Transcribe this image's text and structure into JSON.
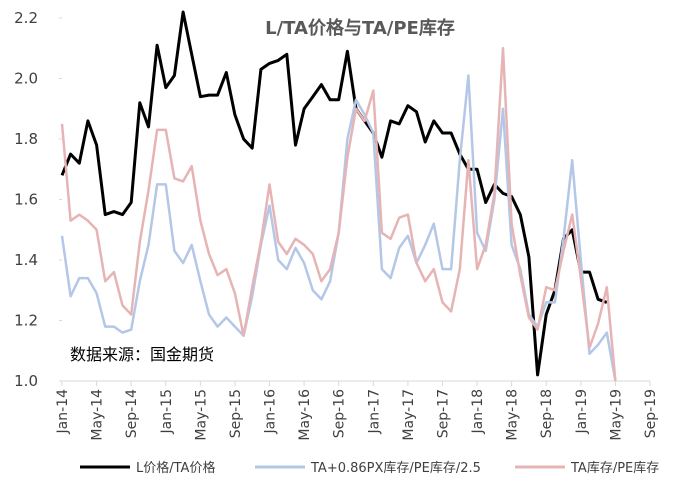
{
  "chart_data": {
    "type": "line",
    "title": "L/TA价格与TA/PE库存",
    "annotation": "数据来源：国金期货",
    "categories": [
      "Jan-14",
      null,
      null,
      null,
      "May-14",
      null,
      null,
      null,
      "Sep-14",
      null,
      null,
      null,
      "Jan-15",
      null,
      null,
      null,
      "May-15",
      null,
      null,
      null,
      "Sep-15",
      null,
      null,
      null,
      "Jan-16",
      null,
      null,
      null,
      "May-16",
      null,
      null,
      null,
      "Sep-16",
      null,
      null,
      null,
      "Jan-17",
      null,
      null,
      null,
      "May-17",
      null,
      null,
      null,
      "Sep-17",
      null,
      null,
      null,
      "Jan-18",
      null,
      null,
      null,
      "May-18",
      null,
      null,
      null,
      "Sep-18",
      null,
      null,
      null,
      "Jan-19",
      null,
      null,
      null,
      "May-19",
      null,
      null,
      null,
      "Sep-19"
    ],
    "series": [
      {
        "name": "L价格/TA价格",
        "color": "#000000",
        "values": [
          1.68,
          1.75,
          1.72,
          1.86,
          1.78,
          1.55,
          1.56,
          1.55,
          1.59,
          1.92,
          1.84,
          2.11,
          1.97,
          2.01,
          2.22,
          2.08,
          1.94,
          1.945,
          1.945,
          2.02,
          1.88,
          1.8,
          1.77,
          2.03,
          2.05,
          2.06,
          2.08,
          1.78,
          1.9,
          1.94,
          1.98,
          1.93,
          1.93,
          2.09,
          1.9,
          1.86,
          1.82,
          1.74,
          1.86,
          1.85,
          1.91,
          1.89,
          1.79,
          1.86,
          1.82,
          1.82,
          1.75,
          1.7,
          1.7,
          1.59,
          1.65,
          1.62,
          1.61,
          1.55,
          1.41,
          1.02,
          1.22,
          1.3,
          1.47,
          1.5,
          1.36,
          1.36,
          1.27,
          1.26,
          null,
          null,
          null,
          null,
          null
        ]
      },
      {
        "name": "TA+0.86PX库存/PE库存/2.5",
        "color": "#b4c7e7",
        "values": [
          1.48,
          1.28,
          1.34,
          1.34,
          1.29,
          1.18,
          1.18,
          1.16,
          1.17,
          1.33,
          1.45,
          1.65,
          1.65,
          1.43,
          1.39,
          1.45,
          1.33,
          1.22,
          1.18,
          1.21,
          1.18,
          1.15,
          1.28,
          1.45,
          1.58,
          1.4,
          1.37,
          1.44,
          1.39,
          1.3,
          1.27,
          1.33,
          1.49,
          1.8,
          1.93,
          1.88,
          1.82,
          1.37,
          1.34,
          1.44,
          1.48,
          1.39,
          1.45,
          1.52,
          1.37,
          1.37,
          1.73,
          2.01,
          1.49,
          1.43,
          1.6,
          1.9,
          1.45,
          1.37,
          1.22,
          1.18,
          1.26,
          1.26,
          1.47,
          1.73,
          1.4,
          1.09,
          1.12,
          1.16,
          1.0,
          null,
          null,
          null,
          null
        ]
      },
      {
        "name": "TA库存/PE库存",
        "color": "#e6b4b4",
        "values": [
          1.85,
          1.53,
          1.55,
          1.53,
          1.5,
          1.33,
          1.36,
          1.25,
          1.22,
          1.46,
          1.63,
          1.83,
          1.83,
          1.67,
          1.66,
          1.71,
          1.53,
          1.42,
          1.35,
          1.37,
          1.29,
          1.15,
          1.31,
          1.46,
          1.65,
          1.46,
          1.42,
          1.47,
          1.45,
          1.42,
          1.33,
          1.37,
          1.49,
          1.74,
          1.9,
          1.86,
          1.96,
          1.49,
          1.47,
          1.54,
          1.55,
          1.39,
          1.33,
          1.37,
          1.26,
          1.23,
          1.37,
          1.73,
          1.37,
          1.45,
          1.62,
          2.1,
          1.52,
          1.35,
          1.21,
          1.17,
          1.31,
          1.3,
          1.43,
          1.55,
          1.34,
          1.11,
          1.19,
          1.31,
          1.0,
          null,
          null,
          null,
          null
        ]
      }
    ],
    "ylim": [
      1.0,
      2.2
    ],
    "yticks": [
      {
        "value": 1,
        "label": "1.0"
      },
      1.2,
      1.4,
      1.6,
      1.8,
      {
        "value": 2,
        "label": "2.0"
      },
      2.2
    ]
  }
}
